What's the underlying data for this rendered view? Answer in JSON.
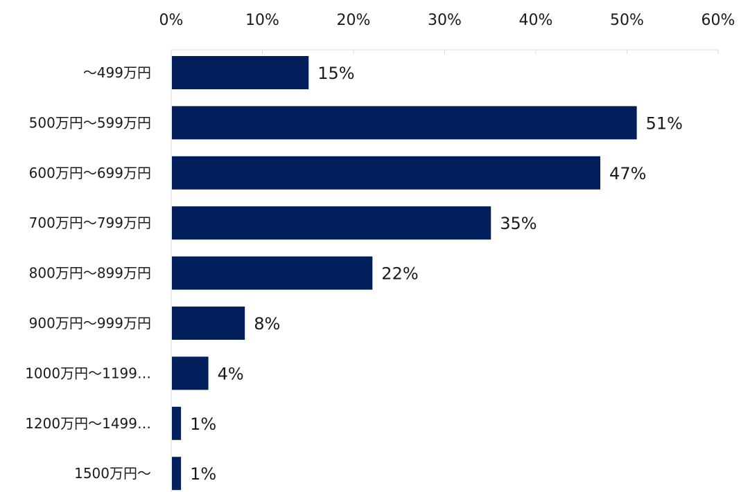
{
  "chart_data": {
    "type": "bar",
    "orientation": "horizontal",
    "categories": [
      "～499万円",
      "500万円～599万円",
      "600万円～699万円",
      "700万円～799万円",
      "800万円～899万円",
      "900万円～999万円",
      "1000万円～1199…",
      "1200万円～1499…",
      "1500万円～"
    ],
    "values": [
      15,
      51,
      47,
      35,
      22,
      8,
      4,
      1,
      1
    ],
    "value_labels": [
      "15%",
      "51%",
      "47%",
      "35%",
      "22%",
      "8%",
      "4%",
      "1%",
      "1%"
    ],
    "ticks": [
      0,
      10,
      20,
      30,
      40,
      50,
      60
    ],
    "tick_labels": [
      "0%",
      "10%",
      "20%",
      "30%",
      "40%",
      "50%",
      "60%"
    ],
    "xlim": [
      0,
      60
    ],
    "axis_position": "top",
    "grid": false,
    "bar_color": "#001f5b"
  }
}
